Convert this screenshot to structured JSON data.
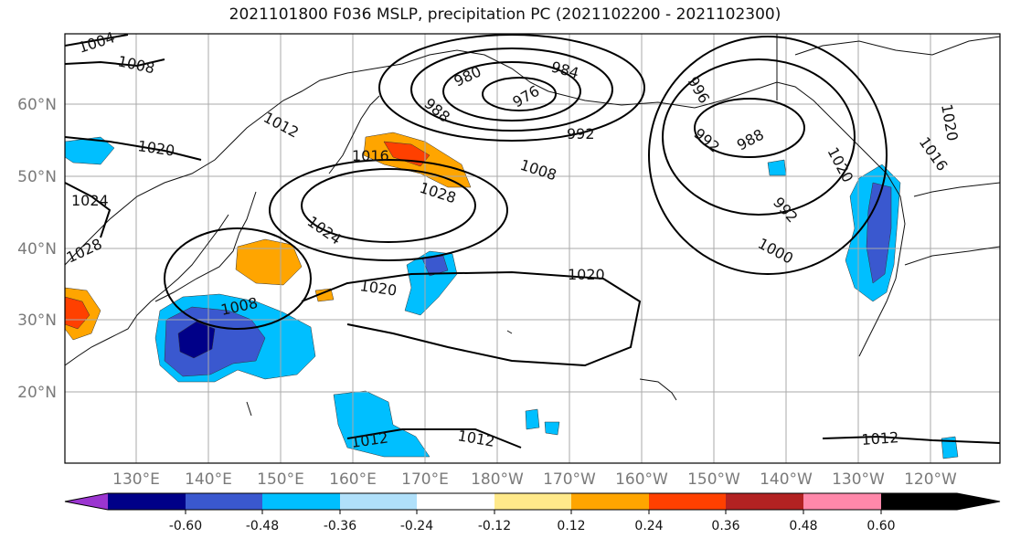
{
  "title": "2021101800 F036 MSLP, precipitation PC (2021102200 - 2021102300)",
  "lon_labels": [
    "130°E",
    "140°E",
    "150°E",
    "160°E",
    "170°E",
    "180°W",
    "170°W",
    "160°W",
    "150°W",
    "140°W",
    "130°W",
    "120°W"
  ],
  "lat_labels": [
    "60°N",
    "50°N",
    "40°N",
    "30°N",
    "20°N"
  ],
  "isobar_labels": [
    "1004",
    "1008",
    "1012",
    "1020",
    "1024",
    "1028",
    "1016",
    "1028",
    "1024",
    "1008",
    "1020",
    "980",
    "984",
    "976",
    "988",
    "992",
    "996",
    "1008",
    "992",
    "988",
    "992",
    "1000",
    "1020",
    "1012",
    "1012",
    "1012",
    "1016",
    "1020",
    "1020"
  ],
  "colorbar": {
    "ticks": [
      "-0.60",
      "-0.48",
      "-0.36",
      "-0.24",
      "-0.12",
      "0.12",
      "0.24",
      "0.36",
      "0.48",
      "0.60"
    ],
    "colors": [
      "#9b35d0",
      "#000088",
      "#3a58cf",
      "#00bfff",
      "#b0e0fa",
      "#ffffff",
      "#ffe98a",
      "#ffa500",
      "#ff4000",
      "#b22222",
      "#ff88aa"
    ]
  }
}
